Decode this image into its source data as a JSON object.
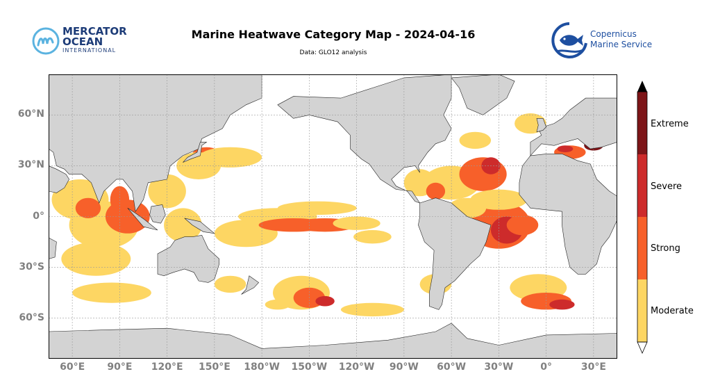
{
  "title": "Marine Heatwave Category Map - 2024-04-16",
  "subtitle": "Data: GLO12 analysis",
  "logos": {
    "left": {
      "line1": "MERCATOR",
      "line2": "OCEAN",
      "line3": "INTERNATIONAL",
      "color": "#1d3c78"
    },
    "right": {
      "line1": "Copernicus",
      "line2": "Marine Service",
      "color": "#1e4fa0"
    }
  },
  "map": {
    "projection": "PlateCarree",
    "central_longitude": 180,
    "extent_lon": [
      45,
      405
    ],
    "extent_lat": [
      -90,
      90
    ],
    "land_color": "#d3d3d3",
    "ocean_color": "#ffffff",
    "gridlines": true,
    "lat_labels": [
      "60°N",
      "30°N",
      "0°",
      "30°S",
      "60°S"
    ],
    "lat_values": [
      60,
      30,
      0,
      -30,
      -60
    ],
    "lon_labels": [
      "60°E",
      "90°E",
      "120°E",
      "150°E",
      "180°W",
      "150°W",
      "120°W",
      "90°W",
      "60°W",
      "30°W",
      "0°",
      "30°E"
    ],
    "lon_values": [
      60,
      90,
      120,
      150,
      180,
      210,
      240,
      270,
      300,
      330,
      360,
      390
    ]
  },
  "legend": {
    "categories": [
      {
        "name": "Moderate",
        "color": "#fdd663"
      },
      {
        "name": "Strong",
        "color": "#f7602a"
      },
      {
        "name": "Severe",
        "color": "#cd2b2b"
      },
      {
        "name": "Extreme",
        "color": "#7d1518"
      }
    ],
    "extend": "both"
  }
}
